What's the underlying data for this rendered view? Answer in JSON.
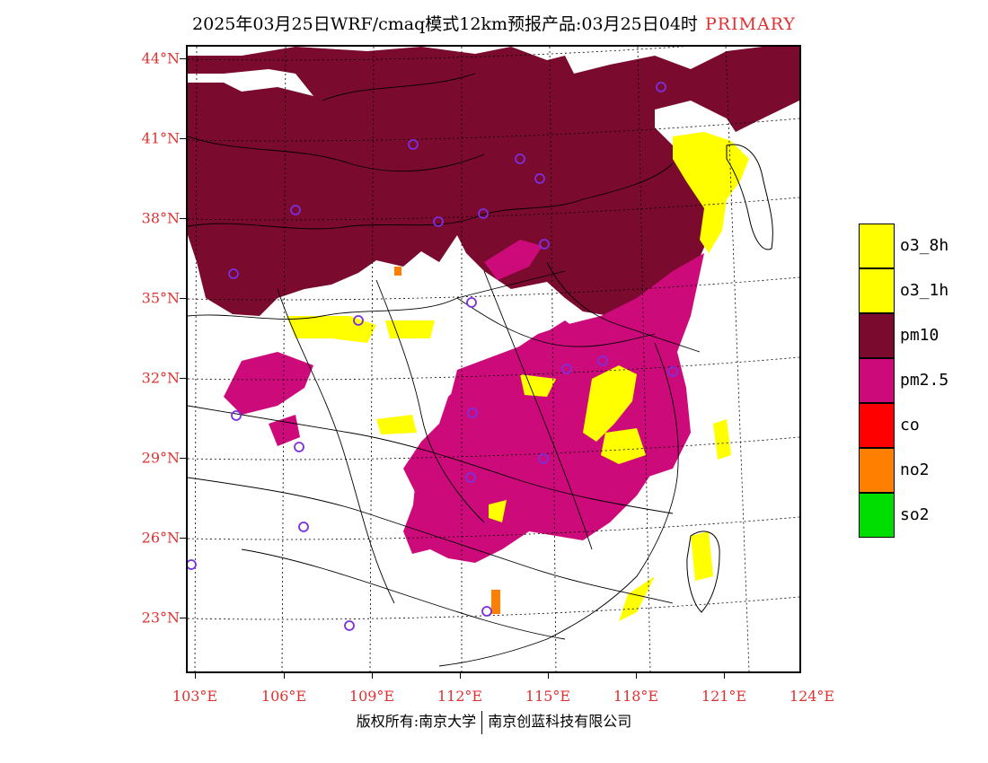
{
  "title": {
    "text": "2025年03月25日WRF/cmaq模式12km预报产品:03月25日04时",
    "tag": "PRIMARY"
  },
  "axes": {
    "lat_labels": [
      "44°N",
      "41°N",
      "38°N",
      "35°N",
      "32°N",
      "29°N",
      "26°N",
      "23°N"
    ],
    "lon_labels": [
      "103°E",
      "106°E",
      "109°E",
      "112°E",
      "115°E",
      "118°E",
      "121°E",
      "124°E"
    ],
    "label_color": "#e03030"
  },
  "legend": [
    {
      "label": "o3_8h",
      "color": "#ffff00"
    },
    {
      "label": "o3_1h",
      "color": "#ffff00"
    },
    {
      "label": "pm10",
      "color": "#7a0a2e"
    },
    {
      "label": "pm2.5",
      "color": "#cc0a7a"
    },
    {
      "label": "co",
      "color": "#ff0000"
    },
    {
      "label": "no2",
      "color": "#ff8000"
    },
    {
      "label": "so2",
      "color": "#00dd00"
    }
  ],
  "footer": {
    "left": "版权所有:南京大学",
    "right": "南京创蓝科技有限公司"
  },
  "colors": {
    "pm10": "#7a0a2e",
    "pm25": "#cc0a7a",
    "o3": "#ffff00",
    "no2": "#ff8000",
    "station": "#7a30e0"
  }
}
